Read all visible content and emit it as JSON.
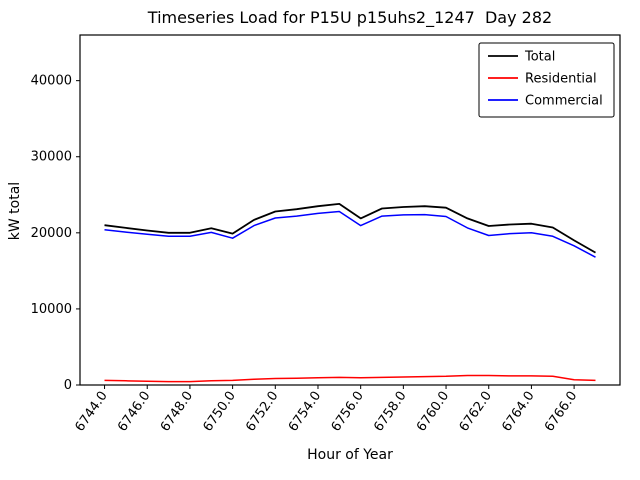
{
  "chart_data": {
    "type": "line",
    "title": "Timeseries Load for P15U p15uhs2_1247  Day 282",
    "xlabel": "Hour of Year",
    "ylabel": "kW total",
    "xlim": [
      6742.85,
      6768.15
    ],
    "ylim": [
      0,
      46000
    ],
    "x_ticks": [
      6744,
      6746,
      6748,
      6750,
      6752,
      6754,
      6756,
      6758,
      6760,
      6762,
      6764,
      6766
    ],
    "x_tick_labels": [
      "6744.0",
      "6746.0",
      "6748.0",
      "6750.0",
      "6752.0",
      "6754.0",
      "6756.0",
      "6758.0",
      "6760.0",
      "6762.0",
      "6764.0",
      "6766.0"
    ],
    "y_ticks": [
      0,
      10000,
      20000,
      30000,
      40000
    ],
    "y_tick_labels": [
      "0",
      "10000",
      "20000",
      "30000",
      "40000"
    ],
    "grid": false,
    "legend_position": "upper right",
    "x": [
      6744,
      6745,
      6746,
      6747,
      6748,
      6749,
      6750,
      6751,
      6752,
      6753,
      6754,
      6755,
      6756,
      6757,
      6758,
      6759,
      6760,
      6761,
      6762,
      6763,
      6764,
      6765,
      6766,
      6767
    ],
    "series": [
      {
        "name": "Total",
        "color": "#000000",
        "values": [
          21000,
          20650,
          20300,
          20000,
          20000,
          20600,
          19900,
          21700,
          22800,
          23100,
          23500,
          23800,
          21900,
          23200,
          23400,
          23500,
          23300,
          21900,
          20900,
          21100,
          21200,
          20700,
          19000,
          17400
        ]
      },
      {
        "name": "Residential",
        "color": "#ff0000",
        "values": [
          600,
          550,
          500,
          450,
          450,
          550,
          600,
          750,
          850,
          900,
          950,
          1000,
          950,
          1000,
          1050,
          1100,
          1150,
          1250,
          1250,
          1200,
          1200,
          1150,
          700,
          600
        ]
      },
      {
        "name": "Commercial",
        "color": "#0000ff",
        "values": [
          20400,
          20100,
          19800,
          19550,
          19550,
          20050,
          19300,
          20950,
          21950,
          22200,
          22550,
          22800,
          20950,
          22200,
          22350,
          22400,
          22150,
          20650,
          19650,
          19900,
          20000,
          19550,
          18300,
          16800
        ]
      }
    ]
  }
}
